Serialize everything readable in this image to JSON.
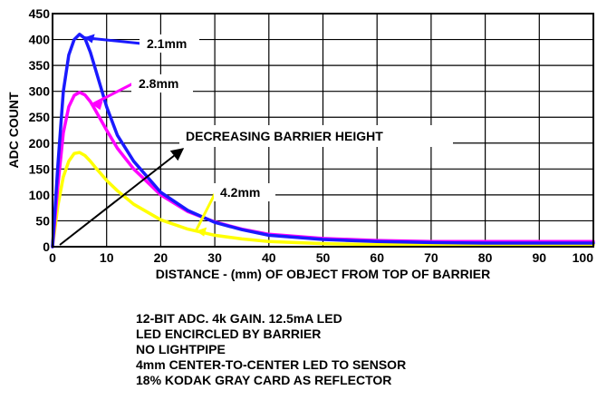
{
  "chart_data": {
    "type": "line",
    "xlabel": "DISTANCE - (mm) OF OBJECT FROM TOP OF BARRIER",
    "ylabel": "ADC COUNT",
    "xlim": [
      0,
      100
    ],
    "ylim": [
      0,
      450
    ],
    "xticks": [
      0,
      10,
      20,
      30,
      40,
      50,
      60,
      70,
      80,
      90,
      100
    ],
    "yticks": [
      0,
      50,
      100,
      150,
      200,
      250,
      300,
      350,
      400,
      450
    ],
    "grid": true,
    "series": [
      {
        "name": "2.1mm",
        "color": "#1a1aff",
        "x": [
          0,
          1,
          2,
          3,
          4,
          5,
          6,
          7,
          8,
          10,
          12,
          15,
          20,
          25,
          30,
          35,
          40,
          50,
          60,
          70,
          80,
          90,
          100
        ],
        "y": [
          0,
          160,
          300,
          370,
          400,
          410,
          402,
          375,
          340,
          270,
          215,
          165,
          105,
          70,
          47,
          33,
          22,
          14,
          10,
          8,
          7,
          7,
          7
        ]
      },
      {
        "name": "2.8mm",
        "color": "#ff00ff",
        "x": [
          0,
          1,
          2,
          3,
          4,
          5,
          6,
          7,
          8,
          10,
          12,
          15,
          20,
          25,
          30,
          35,
          40,
          50,
          60,
          70,
          80,
          90,
          100
        ],
        "y": [
          0,
          120,
          220,
          270,
          292,
          298,
          293,
          280,
          262,
          225,
          190,
          150,
          100,
          68,
          48,
          34,
          24,
          16,
          12,
          10,
          10,
          10,
          10
        ]
      },
      {
        "name": "4.2mm",
        "color": "#ffff00",
        "x": [
          0,
          1,
          2,
          3,
          4,
          5,
          6,
          7,
          8,
          10,
          12,
          15,
          20,
          25,
          30,
          35,
          40,
          50,
          60,
          70,
          80,
          90,
          100
        ],
        "y": [
          0,
          80,
          135,
          165,
          180,
          182,
          176,
          165,
          152,
          128,
          108,
          82,
          52,
          34,
          22,
          15,
          10,
          6,
          4,
          4,
          4,
          4,
          4
        ]
      }
    ],
    "annotations": [
      {
        "text": "2.1mm",
        "series": 0,
        "at_x": 5.8
      },
      {
        "text": "2.8mm",
        "series": 1,
        "at_x": 7.3
      },
      {
        "text": "4.2mm",
        "series": 2,
        "at_x": 26.5
      },
      {
        "text": "DECREASING BARRIER HEIGHT"
      }
    ]
  },
  "notes": [
    "12-BIT ADC. 4k GAIN. 12.5mA LED",
    "LED ENCIRCLED BY BARRIER",
    "NO LIGHTPIPE",
    "4mm CENTER-TO-CENTER LED TO SENSOR",
    "18% KODAK GRAY CARD AS REFLECTOR"
  ]
}
